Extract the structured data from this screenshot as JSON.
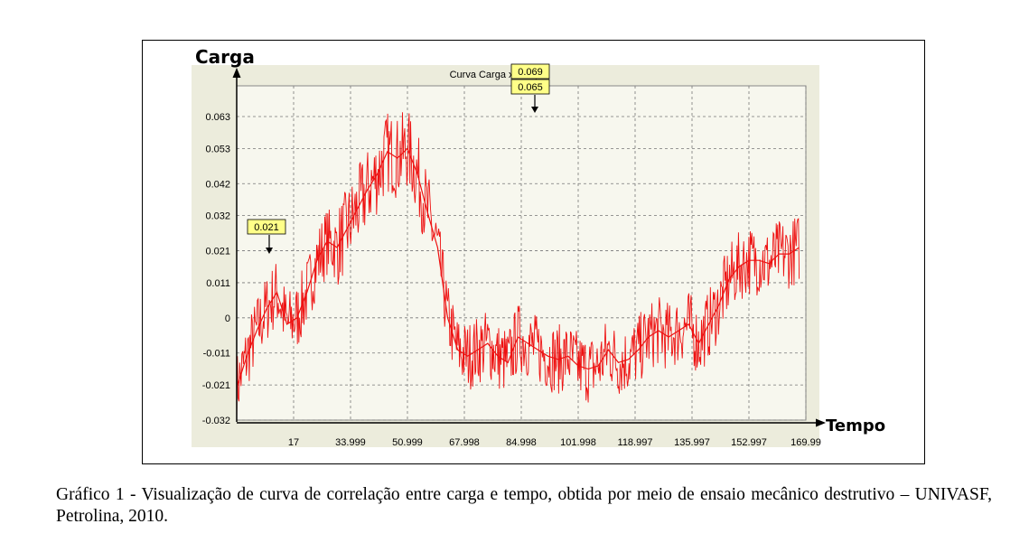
{
  "chart_data": {
    "type": "line",
    "title": "Curva Carga x Tempo",
    "ylabel": "Carga",
    "xlabel": "Tempo",
    "y_ticks": [
      "0.063",
      "0.053",
      "0.042",
      "0.032",
      "0.021",
      "0.011",
      "0",
      "-0.011",
      "-0.021",
      "-0.032"
    ],
    "x_ticks": [
      "17",
      "33.999",
      "50.999",
      "67.998",
      "84.998",
      "101.998",
      "118.997",
      "135.997",
      "152.997",
      "169.99"
    ],
    "x_tick_values": [
      17,
      33.999,
      50.999,
      67.998,
      84.998,
      101.998,
      118.997,
      135.997,
      152.997,
      169.997
    ],
    "xlim": [
      0,
      169.997
    ],
    "ylim": [
      -0.032,
      0.063
    ],
    "grid": true,
    "series": [
      {
        "color": "#ee1111",
        "x": [
          0,
          3,
          6,
          9,
          12,
          15,
          18,
          21,
          24,
          27,
          30,
          33,
          36,
          39,
          42,
          45,
          48,
          51,
          54,
          57,
          60,
          63,
          66,
          69,
          72,
          75,
          78,
          81,
          84,
          87,
          90,
          93,
          96,
          99,
          102,
          105,
          108,
          111,
          114,
          117,
          120,
          123,
          126,
          129,
          132,
          135,
          138,
          141,
          144,
          147,
          150,
          153,
          156,
          159,
          162,
          165,
          168
        ],
        "y": [
          -0.022,
          -0.012,
          -0.004,
          0.003,
          0.008,
          -0.002,
          0.0,
          0.008,
          0.018,
          0.024,
          0.022,
          0.028,
          0.034,
          0.04,
          0.045,
          0.052,
          0.05,
          0.053,
          0.045,
          0.033,
          0.022,
          0.0,
          -0.01,
          -0.012,
          -0.01,
          -0.008,
          -0.012,
          -0.014,
          -0.006,
          -0.008,
          -0.01,
          -0.012,
          -0.013,
          -0.012,
          -0.015,
          -0.016,
          -0.015,
          -0.01,
          -0.014,
          -0.013,
          -0.01,
          -0.006,
          -0.004,
          -0.006,
          -0.004,
          -0.002,
          -0.008,
          -0.002,
          0.004,
          0.012,
          0.016,
          0.018,
          0.018,
          0.017,
          0.02,
          0.02,
          0.022
        ]
      }
    ],
    "annotations": [
      {
        "text": "0.069",
        "x": 51.5,
        "y": 0.069
      },
      {
        "text": "0.065",
        "x": 51.5,
        "y": 0.065
      },
      {
        "text": "0.021",
        "x": 10,
        "y": 0.021
      }
    ]
  },
  "caption": "Gráfico 1 - Visualização de curva de correlação entre carga e tempo, obtida por meio de ensaio mecânico destrutivo – UNIVASF, Petrolina, 2010."
}
